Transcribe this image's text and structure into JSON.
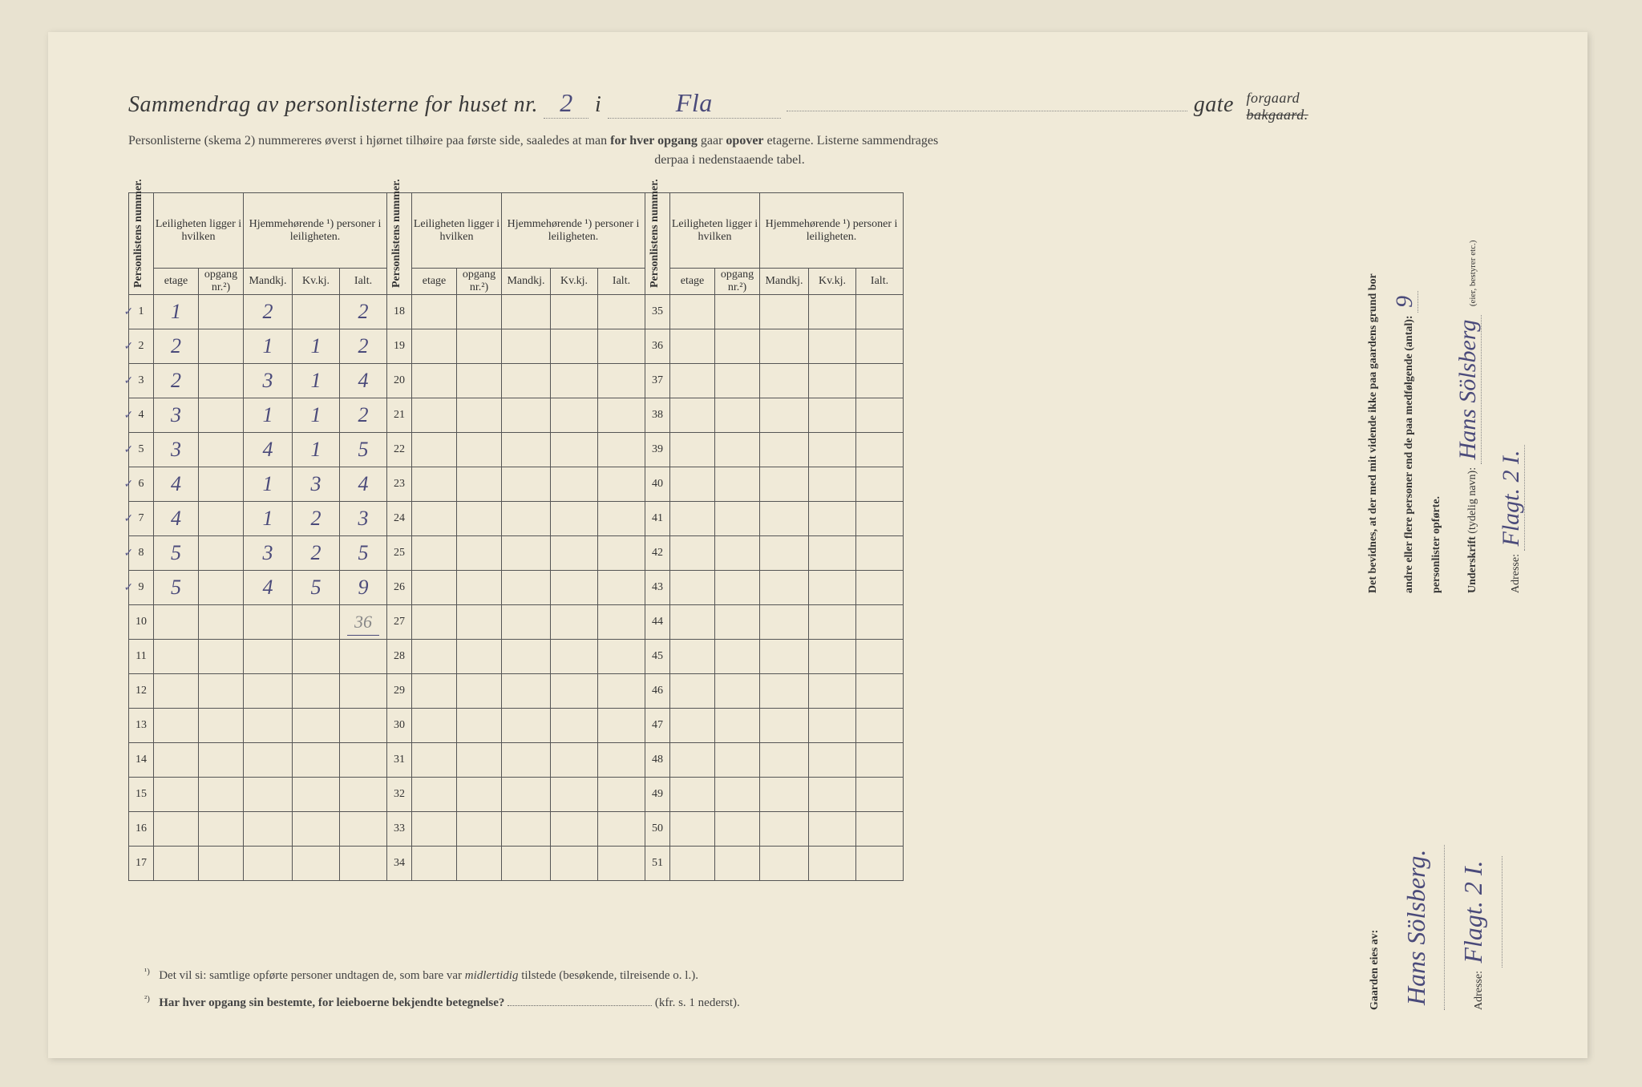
{
  "header": {
    "title_prefix": "Sammendrag av personlisterne for huset nr.",
    "house_nr": "2",
    "i": "i",
    "street": "Fla",
    "gate": "gate",
    "forgaard": "forgaard",
    "bakgaard": "bakgaard.",
    "subtitle_1": "Personlisterne (skema 2) nummereres øverst i hjørnet tilhøire paa første side, saaledes at man",
    "subtitle_bold": "for hver opgang",
    "subtitle_2": "gaar",
    "subtitle_bold2": "opover",
    "subtitle_3": "etagerne.  Listerne sammendrages",
    "subtitle_4": "derpaa i nedenstaaende tabel."
  },
  "table": {
    "col_personlistens": "Personlistens\nnummer.",
    "col_leilighet": "Leiligheten\nligger i hvilken",
    "col_hjemme": "Hjemmehørende ¹)\npersoner i leiligheten.",
    "sub_etage": "etage",
    "sub_opgang": "opgang\nnr.²)",
    "sub_mandkj": "Mandkj.",
    "sub_kvkj": "Kv.kj.",
    "sub_ialt": "Ialt.",
    "rows": [
      {
        "n": "1",
        "chk": "✓",
        "etage": "1",
        "opgang": "",
        "m": "2",
        "k": "",
        "i": "2"
      },
      {
        "n": "2",
        "chk": "✓",
        "etage": "2",
        "opgang": "",
        "m": "1",
        "k": "1",
        "i": "2"
      },
      {
        "n": "3",
        "chk": "✓",
        "etage": "2",
        "opgang": "",
        "m": "3",
        "k": "1",
        "i": "4"
      },
      {
        "n": "4",
        "chk": "✓",
        "etage": "3",
        "opgang": "",
        "m": "1",
        "k": "1",
        "i": "2"
      },
      {
        "n": "5",
        "chk": "✓",
        "etage": "3",
        "opgang": "",
        "m": "4",
        "k": "1",
        "i": "5"
      },
      {
        "n": "6",
        "chk": "✓",
        "etage": "4",
        "opgang": "",
        "m": "1",
        "k": "3",
        "i": "4"
      },
      {
        "n": "7",
        "chk": "✓",
        "etage": "4",
        "opgang": "",
        "m": "1",
        "k": "2",
        "i": "3"
      },
      {
        "n": "8",
        "chk": "✓",
        "etage": "5",
        "opgang": "",
        "m": "3",
        "k": "2",
        "i": "5"
      },
      {
        "n": "9",
        "chk": "✓",
        "etage": "5",
        "opgang": "",
        "m": "4",
        "k": "5",
        "i": "9"
      },
      {
        "n": "10",
        "chk": "",
        "etage": "",
        "opgang": "",
        "m": "",
        "k": "",
        "i": "36"
      },
      {
        "n": "11",
        "chk": "",
        "etage": "",
        "opgang": "",
        "m": "",
        "k": "",
        "i": ""
      },
      {
        "n": "12",
        "chk": "",
        "etage": "",
        "opgang": "",
        "m": "",
        "k": "",
        "i": ""
      },
      {
        "n": "13",
        "chk": "",
        "etage": "",
        "opgang": "",
        "m": "",
        "k": "",
        "i": ""
      },
      {
        "n": "14",
        "chk": "",
        "etage": "",
        "opgang": "",
        "m": "",
        "k": "",
        "i": ""
      },
      {
        "n": "15",
        "chk": "",
        "etage": "",
        "opgang": "",
        "m": "",
        "k": "",
        "i": ""
      },
      {
        "n": "16",
        "chk": "",
        "etage": "",
        "opgang": "",
        "m": "",
        "k": "",
        "i": ""
      },
      {
        "n": "17",
        "chk": "",
        "etage": "",
        "opgang": "",
        "m": "",
        "k": "",
        "i": ""
      }
    ],
    "rows2": [
      "18",
      "19",
      "20",
      "21",
      "22",
      "23",
      "24",
      "25",
      "26",
      "27",
      "28",
      "29",
      "30",
      "31",
      "32",
      "33",
      "34"
    ],
    "rows3": [
      "35",
      "36",
      "37",
      "38",
      "39",
      "40",
      "41",
      "42",
      "43",
      "44",
      "45",
      "46",
      "47",
      "48",
      "49",
      "50",
      "51"
    ]
  },
  "footnotes": {
    "f1_sup": "¹)",
    "f1": "Det vil si: samtlige opførte personer undtagen de, som bare var",
    "f1_italic": "midlertidig",
    "f1_end": "tilstede (besøkende, tilreisende o. l.).",
    "f2_sup": "²)",
    "f2_bold": "Har hver opgang sin bestemte, for leieboerne bekjendte betegnelse?",
    "f2_end": "(kfr. s. 1 nederst)."
  },
  "right": {
    "line1a": "Det bevidnes, at der med mit vidende ikke paa gaardens grund bor",
    "line1b": "andre eller flere personer end de paa medfølgende (antal):",
    "count": "9",
    "line2": "personlister opførte.",
    "underskrift_label": "Underskrift",
    "underskrift_note": "(tydelig navn):",
    "underskrift": "Hans Sölsberg",
    "eller": "(eier, bestyrer etc.)",
    "adresse_label": "Adresse:",
    "adresse": "Flagt. 2 I."
  },
  "owner": {
    "label": "Gaarden eies av:",
    "name": "Hans Sölsberg.",
    "adresse_label": "Adresse:",
    "adresse": "Flagt. 2 I."
  }
}
